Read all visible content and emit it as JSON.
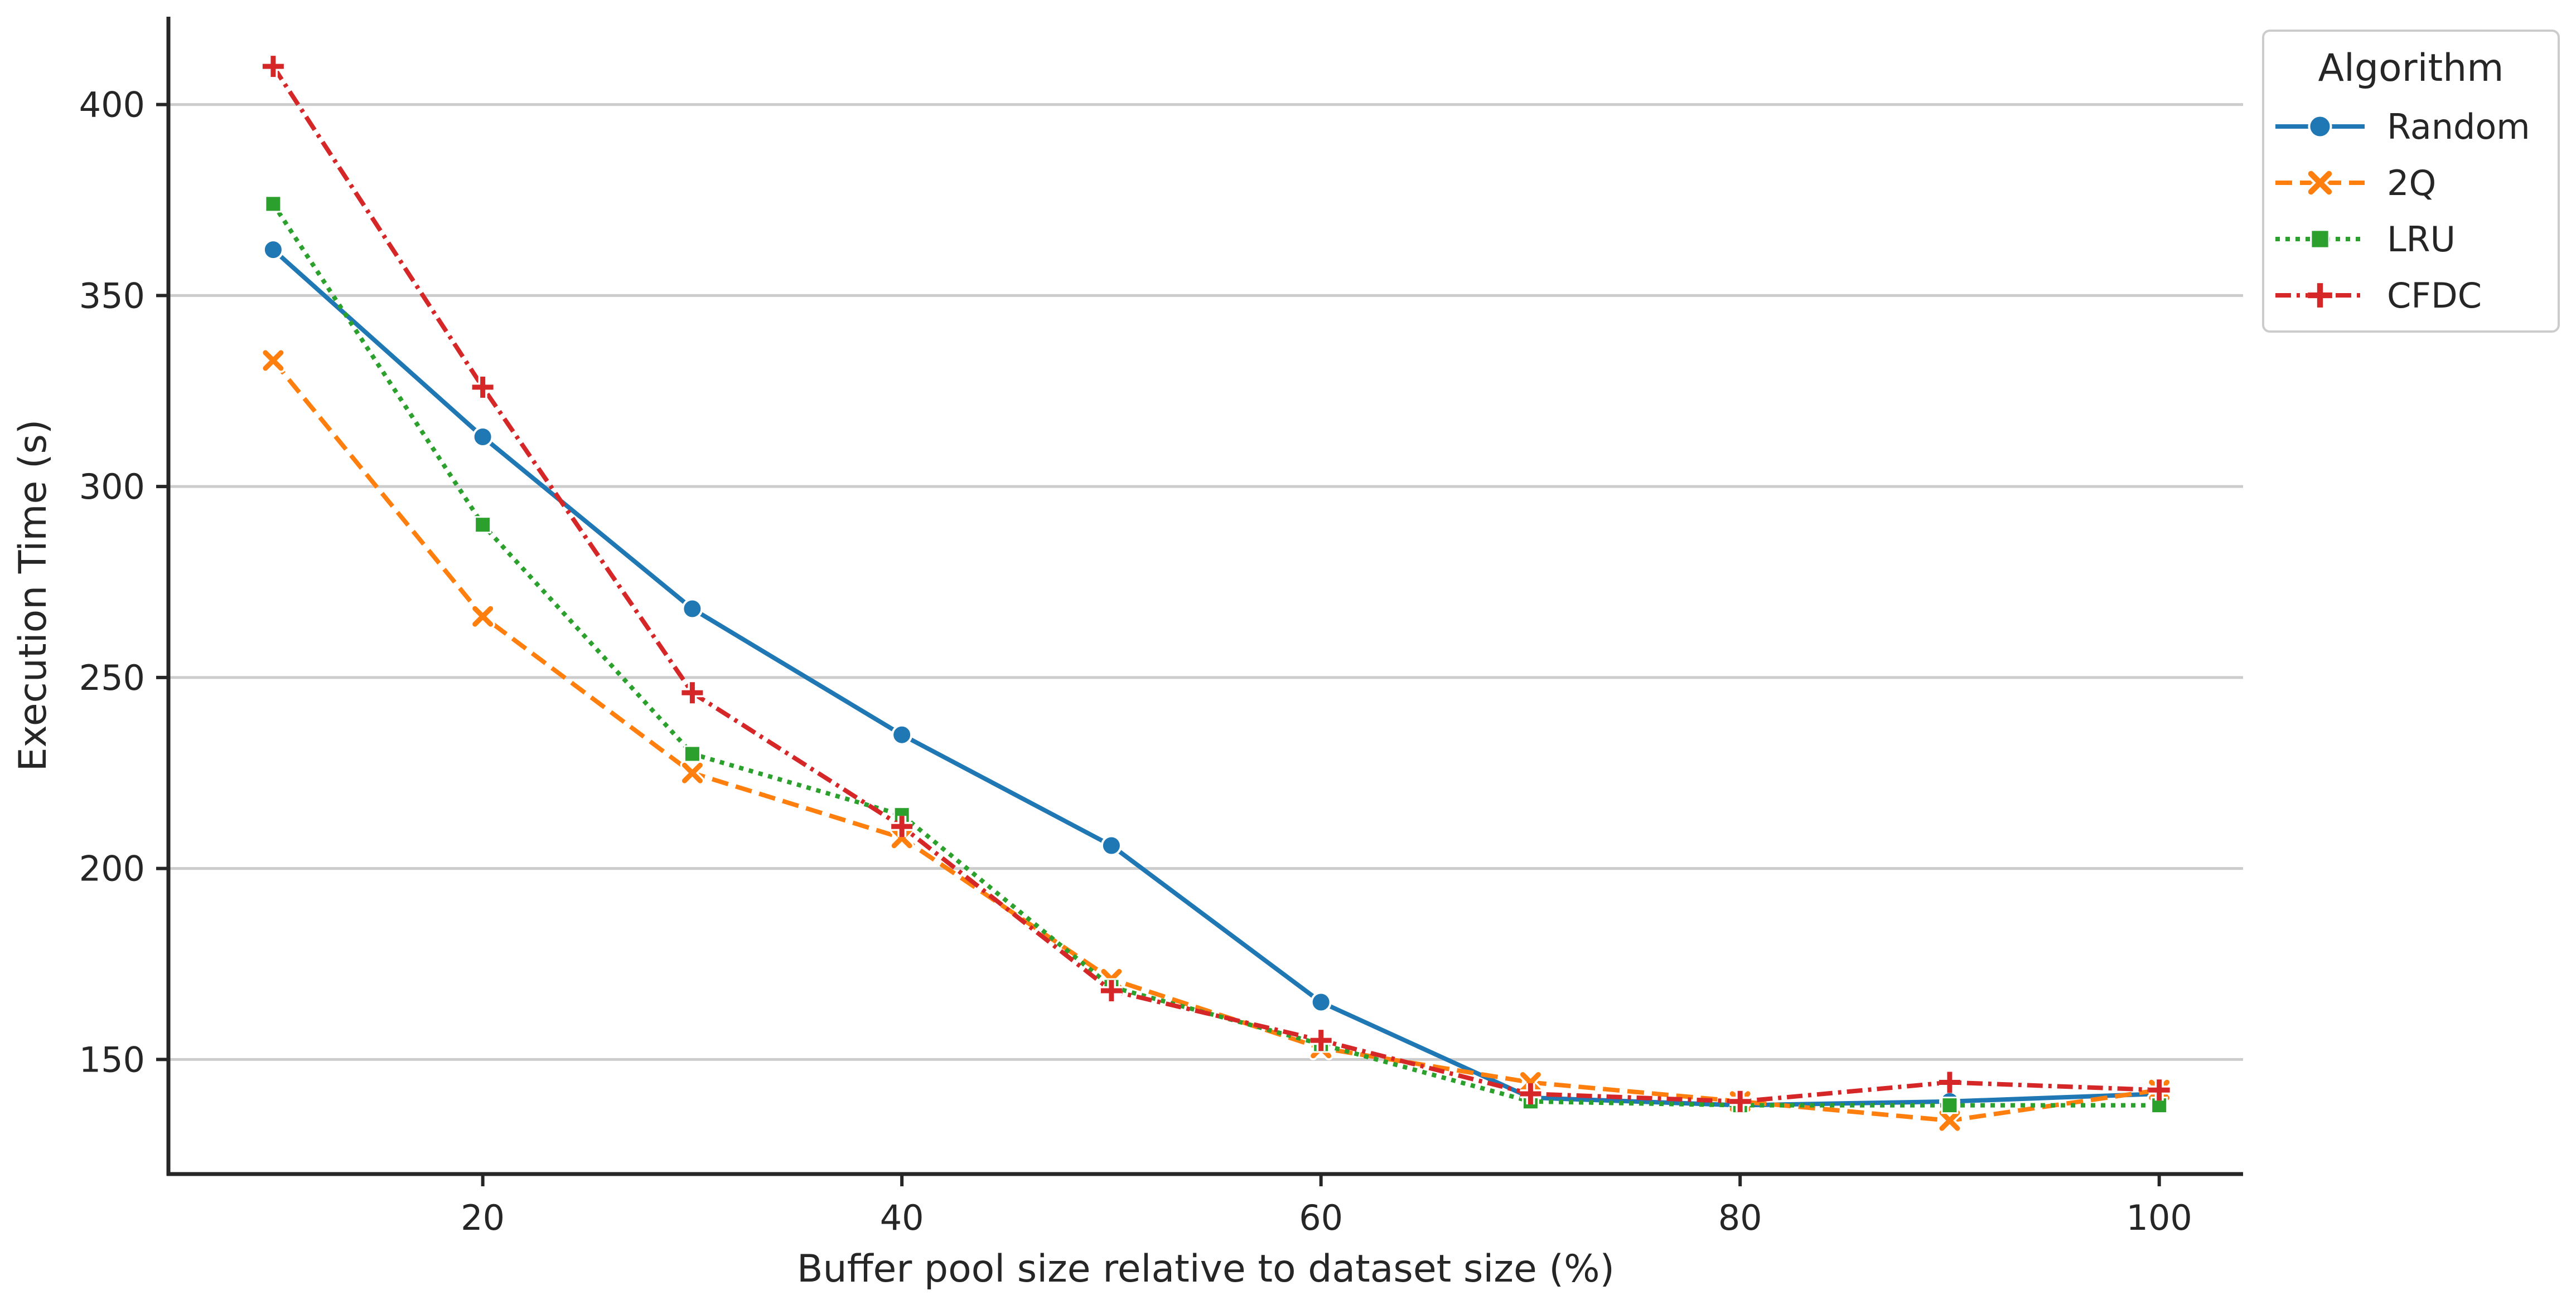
{
  "chart_data": {
    "type": "line",
    "title": "",
    "xlabel": "Buffer pool size relative to dataset size (%)",
    "ylabel": "Execution Time (s)",
    "xlim": [
      5,
      104
    ],
    "ylim": [
      120,
      423
    ],
    "xticks": [
      20,
      40,
      60,
      80,
      100
    ],
    "yticks": [
      150,
      200,
      250,
      300,
      350,
      400
    ],
    "grid": "horizontal",
    "legend": {
      "title": "Algorithm",
      "placement": "upper-right-outside"
    },
    "x": [
      10,
      20,
      30,
      40,
      50,
      60,
      70,
      80,
      90,
      100
    ],
    "series": [
      {
        "name": "Random",
        "color": "#1f77b4",
        "dash": "solid",
        "marker": "circle",
        "values": [
          362,
          313,
          268,
          235,
          206,
          165,
          140,
          138,
          139,
          141
        ]
      },
      {
        "name": "2Q",
        "color": "#ff7f0e",
        "dash": "dashed",
        "marker": "x",
        "values": [
          333,
          266,
          225,
          208,
          171,
          153,
          144,
          139,
          134,
          142
        ]
      },
      {
        "name": "LRU",
        "color": "#2ca02c",
        "dash": "dotted",
        "marker": "square",
        "values": [
          374,
          290,
          230,
          214,
          169,
          154,
          139,
          138,
          138,
          138
        ]
      },
      {
        "name": "CFDC",
        "color": "#d62728",
        "dash": "dashdot",
        "marker": "plus",
        "values": [
          410,
          326,
          246,
          211,
          168,
          155,
          141,
          139,
          144,
          142
        ]
      }
    ]
  }
}
